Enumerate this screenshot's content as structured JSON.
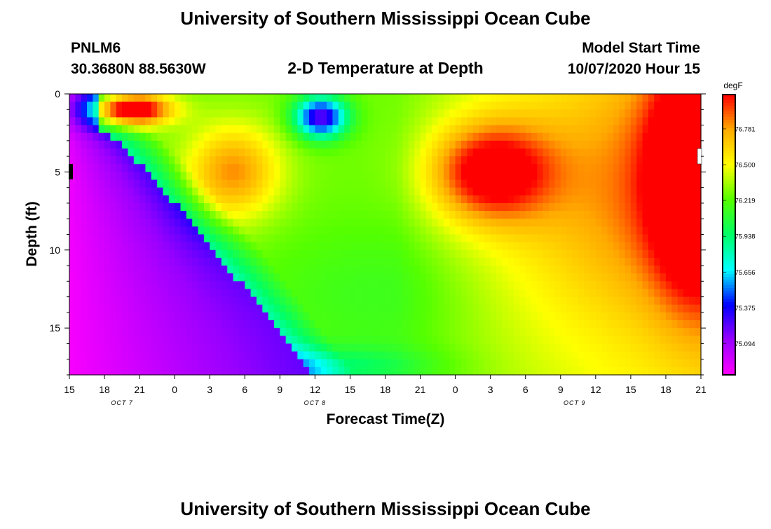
{
  "header": {
    "title": "University of Southern Mississippi Ocean Cube",
    "station_id": "PNLM6",
    "station_coords": "30.3680N 88.5630W",
    "subtitle": "2-D Temperature at Depth",
    "model_start_label": "Model Start Time",
    "model_start_value": "10/07/2020 Hour 15"
  },
  "footer": {
    "title": "University of Southern Mississippi Ocean Cube"
  },
  "chart_data": {
    "type": "heatmap",
    "title": "2-D Temperature at Depth",
    "xlabel": "Forecast Time(Z)",
    "ylabel": "Depth (ft)",
    "x_tick_labels": [
      "15",
      "18",
      "21",
      "0",
      "3",
      "6",
      "9",
      "12",
      "15",
      "18",
      "21",
      "0",
      "3",
      "6",
      "9",
      "12",
      "15",
      "18",
      "21"
    ],
    "date_labels": [
      {
        "label": "OCT 7",
        "tick_index": 1.5
      },
      {
        "label": "OCT 8",
        "tick_index": 7
      },
      {
        "label": "OCT 9",
        "tick_index": 14.4
      }
    ],
    "x_range_hours": [
      0,
      54
    ],
    "y_ticks": [
      0,
      5,
      10,
      15
    ],
    "y_range_ft": [
      0,
      18
    ],
    "colorbar": {
      "unit": "degF",
      "tick_labels": [
        "76.781",
        "76.500",
        "76.219",
        "75.938",
        "75.656",
        "75.375",
        "75.094"
      ],
      "min": 74.85,
      "max": 77.05,
      "stops": [
        "#ff00ff",
        "#9900ff",
        "#0000ff",
        "#00ffff",
        "#00ff66",
        "#55ff00",
        "#ffff00",
        "#ffaa00",
        "#ff0000"
      ]
    },
    "features": [
      {
        "name": "warm_surface_band_oct7",
        "center_hour": 5,
        "center_depth": 1,
        "delta": 1.1
      },
      {
        "name": "warm_mid_core_oct8",
        "center_hour": 14,
        "center_depth": 5,
        "delta": 0.55
      },
      {
        "name": "cold_lens_oct8",
        "center_hour": 21.5,
        "center_depth": 1.5,
        "delta": -1.05
      },
      {
        "name": "warm_core_oct9",
        "center_hour": 36,
        "center_depth": 5,
        "delta": 0.75
      },
      {
        "name": "warm_edge_late_oct9",
        "center_hour": 53.5,
        "center_depth": 5,
        "delta": 0.85
      }
    ]
  }
}
